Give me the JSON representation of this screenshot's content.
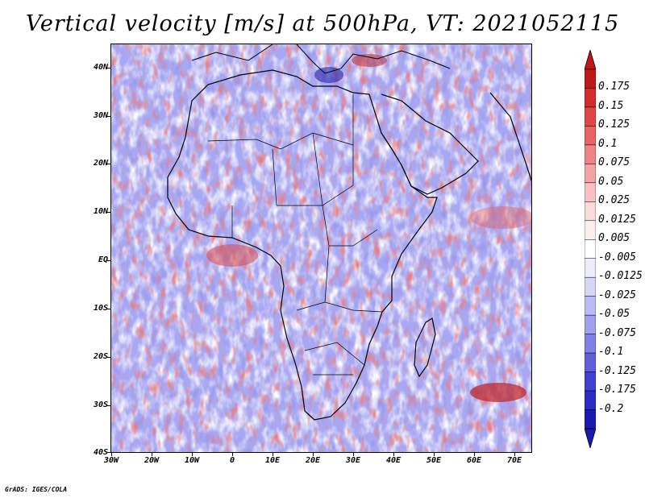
{
  "title": "Vertical velocity [m/s] at 500hPa, VT: 2021052115",
  "credit": "GrADS: IGES/COLA",
  "lat_labels": [
    "40N",
    "30N",
    "20N",
    "10N",
    "EQ",
    "10S",
    "20S",
    "30S",
    "40S"
  ],
  "lon_labels": [
    "30W",
    "20W",
    "10W",
    "0",
    "10E",
    "20E",
    "30E",
    "40E",
    "50E",
    "60E",
    "70E"
  ],
  "colorbar": {
    "labels": [
      "0.175",
      "0.15",
      "0.125",
      "0.1",
      "0.075",
      "0.05",
      "0.025",
      "0.0125",
      "0.005",
      "-0.005",
      "-0.0125",
      "-0.025",
      "-0.05",
      "-0.075",
      "-0.1",
      "-0.125",
      "-0.175",
      "-0.2"
    ],
    "colors": [
      "#c01818",
      "#d42a2a",
      "#e04646",
      "#ea6464",
      "#f08484",
      "#f4a2a2",
      "#f8c0c0",
      "#fbdada",
      "#fdeeee",
      "#ffffff",
      "#ececfd",
      "#d6d6f9",
      "#bcbcf4",
      "#a0a0ef",
      "#8080e8",
      "#6060de",
      "#4040d2",
      "#2a2ac4",
      "#1a1ab0"
    ]
  },
  "colors": {
    "positive": "#e05050",
    "negative": "#6060e0",
    "coast": "#000000"
  }
}
